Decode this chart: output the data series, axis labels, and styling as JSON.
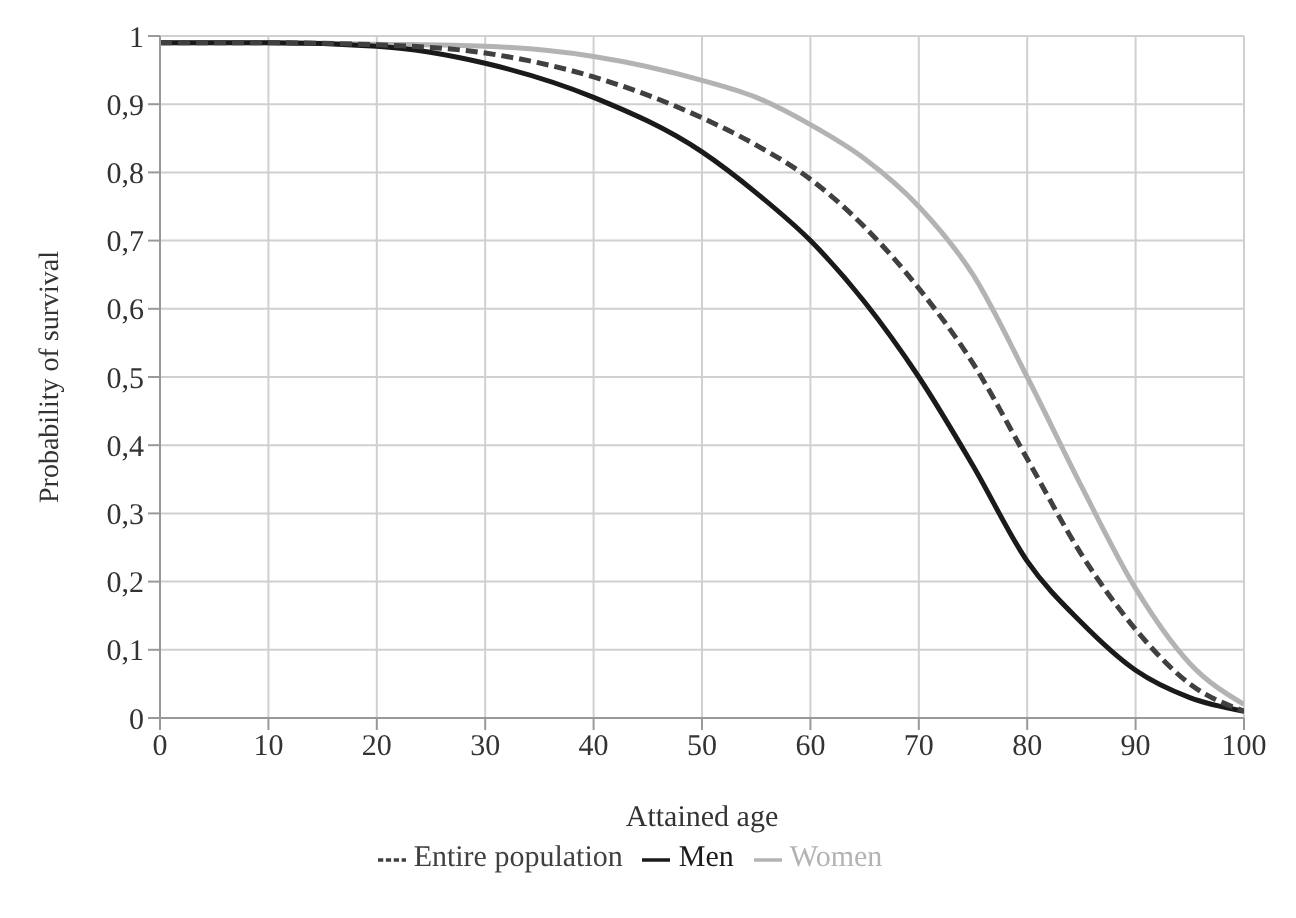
{
  "chart_data": {
    "type": "line",
    "xlabel": "Attained age",
    "ylabel": "Probability of survival",
    "x": [
      0,
      10,
      20,
      30,
      40,
      50,
      55,
      60,
      65,
      70,
      75,
      80,
      85,
      90,
      95,
      100
    ],
    "series": [
      {
        "name": "Women",
        "color": "#b3b3b3",
        "line_style": "solid",
        "values": [
          0.99,
          0.99,
          0.988,
          0.985,
          0.97,
          0.935,
          0.91,
          0.87,
          0.82,
          0.75,
          0.65,
          0.5,
          0.34,
          0.19,
          0.08,
          0.02
        ]
      },
      {
        "name": "Men",
        "color": "#1a1a1a",
        "line_style": "solid",
        "values": [
          0.99,
          0.99,
          0.985,
          0.96,
          0.91,
          0.83,
          0.77,
          0.7,
          0.61,
          0.5,
          0.37,
          0.23,
          0.14,
          0.07,
          0.03,
          0.01
        ]
      },
      {
        "name": "Entire population",
        "color": "#404040",
        "line_style": "dashed",
        "values": [
          0.99,
          0.99,
          0.987,
          0.975,
          0.94,
          0.88,
          0.84,
          0.79,
          0.72,
          0.63,
          0.52,
          0.38,
          0.24,
          0.13,
          0.05,
          0.01
        ]
      }
    ],
    "xlim": [
      0,
      100
    ],
    "xticks": [
      0,
      10,
      20,
      30,
      40,
      50,
      60,
      70,
      80,
      90,
      100
    ],
    "ylim": [
      0,
      1
    ],
    "yticks": [
      0,
      {
        "value": 0.1,
        "label": "0,1"
      },
      {
        "value": 0.2,
        "label": "0,2"
      },
      {
        "value": 0.3,
        "label": "0,3"
      },
      {
        "value": 0.4,
        "label": "0,4"
      },
      {
        "value": 0.5,
        "label": "0,5"
      },
      {
        "value": 0.6,
        "label": "0,6"
      },
      {
        "value": 0.7,
        "label": "0,7"
      },
      {
        "value": 0.8,
        "label": "0,8"
      },
      {
        "value": 0.9,
        "label": "0,9"
      },
      1
    ],
    "grid": true,
    "legend": "bottom",
    "marker": "none"
  }
}
